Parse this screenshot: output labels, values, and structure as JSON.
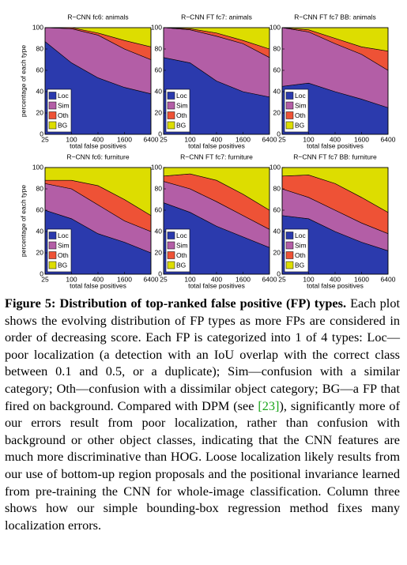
{
  "chart_data": [
    {
      "type": "area",
      "stacked": true,
      "title": "R−CNN fc6: animals",
      "xlabel": "total false positives",
      "ylabel": "percentage of each type",
      "x": [
        25,
        100,
        400,
        1600,
        6400
      ],
      "xscale": "log",
      "xlim": [
        25,
        6400
      ],
      "xticks": [
        25,
        100,
        400,
        1600,
        6400
      ],
      "ylim": [
        0,
        100
      ],
      "yticks": [
        0,
        20,
        40,
        60,
        80,
        100
      ],
      "legend": "lower left",
      "series": [
        {
          "name": "Loc",
          "color": "#2b3aad",
          "values": [
            87,
            67,
            53,
            44,
            38
          ]
        },
        {
          "name": "Sim",
          "color": "#b35ea6",
          "values": [
            13,
            32,
            40,
            36,
            32
          ]
        },
        {
          "name": "Oth",
          "color": "#ee5236",
          "values": [
            0,
            1,
            2,
            8,
            12
          ]
        },
        {
          "name": "BG",
          "color": "#dddd00",
          "values": [
            0,
            0,
            5,
            12,
            18
          ]
        }
      ]
    },
    {
      "type": "area",
      "stacked": true,
      "title": "R−CNN FT fc7: animals",
      "xlabel": "total false positives",
      "x": [
        25,
        100,
        400,
        1600,
        6400
      ],
      "xscale": "log",
      "xlim": [
        25,
        6400
      ],
      "xticks": [
        25,
        100,
        400,
        1600,
        6400
      ],
      "ylim": [
        0,
        100
      ],
      "yticks": [
        0,
        20,
        40,
        60,
        80,
        100
      ],
      "legend": "lower left",
      "series": [
        {
          "name": "Loc",
          "color": "#2b3aad",
          "values": [
            72,
            67,
            50,
            40,
            35
          ]
        },
        {
          "name": "Sim",
          "color": "#b35ea6",
          "values": [
            28,
            31,
            42,
            45,
            37
          ]
        },
        {
          "name": "Oth",
          "color": "#ee5236",
          "values": [
            0,
            1,
            3,
            3,
            8
          ]
        },
        {
          "name": "BG",
          "color": "#dddd00",
          "values": [
            0,
            1,
            5,
            12,
            20
          ]
        }
      ]
    },
    {
      "type": "area",
      "stacked": true,
      "title": "R−CNN FT fc7 BB: animals",
      "xlabel": "total false positives",
      "x": [
        25,
        100,
        400,
        1600,
        6400
      ],
      "xscale": "log",
      "xlim": [
        25,
        6400
      ],
      "xticks": [
        25,
        100,
        400,
        1600,
        6400
      ],
      "ylim": [
        0,
        100
      ],
      "yticks": [
        0,
        20,
        40,
        60,
        80,
        100
      ],
      "legend": "lower left",
      "series": [
        {
          "name": "Loc",
          "color": "#2b3aad",
          "values": [
            45,
            48,
            40,
            33,
            25
          ]
        },
        {
          "name": "Sim",
          "color": "#b35ea6",
          "values": [
            55,
            48,
            45,
            42,
            35
          ]
        },
        {
          "name": "Oth",
          "color": "#ee5236",
          "values": [
            0,
            2,
            5,
            7,
            18
          ]
        },
        {
          "name": "BG",
          "color": "#dddd00",
          "values": [
            0,
            2,
            10,
            18,
            22
          ]
        }
      ]
    },
    {
      "type": "area",
      "stacked": true,
      "title": "R−CNN fc6: furniture",
      "xlabel": "total false positives",
      "ylabel": "percentage of each type",
      "x": [
        25,
        100,
        400,
        1600,
        6400
      ],
      "xscale": "log",
      "xlim": [
        25,
        6400
      ],
      "xticks": [
        25,
        100,
        400,
        1600,
        6400
      ],
      "ylim": [
        0,
        100
      ],
      "yticks": [
        0,
        20,
        40,
        60,
        80,
        100
      ],
      "legend": "lower left",
      "series": [
        {
          "name": "Loc",
          "color": "#2b3aad",
          "values": [
            60,
            52,
            38,
            30,
            20
          ]
        },
        {
          "name": "Sim",
          "color": "#b35ea6",
          "values": [
            25,
            28,
            27,
            20,
            20
          ]
        },
        {
          "name": "Oth",
          "color": "#ee5236",
          "values": [
            3,
            8,
            18,
            20,
            15
          ]
        },
        {
          "name": "BG",
          "color": "#dddd00",
          "values": [
            12,
            12,
            17,
            30,
            45
          ]
        }
      ]
    },
    {
      "type": "area",
      "stacked": true,
      "title": "R−CNN FT fc7: furniture",
      "xlabel": "total false positives",
      "x": [
        25,
        100,
        400,
        1600,
        6400
      ],
      "xscale": "log",
      "xlim": [
        25,
        6400
      ],
      "xticks": [
        25,
        100,
        400,
        1600,
        6400
      ],
      "ylim": [
        0,
        100
      ],
      "yticks": [
        0,
        20,
        40,
        60,
        80,
        100
      ],
      "legend": "lower left",
      "series": [
        {
          "name": "Loc",
          "color": "#2b3aad",
          "values": [
            67,
            58,
            45,
            35,
            25
          ]
        },
        {
          "name": "Sim",
          "color": "#b35ea6",
          "values": [
            20,
            22,
            23,
            20,
            17
          ]
        },
        {
          "name": "Oth",
          "color": "#ee5236",
          "values": [
            5,
            14,
            20,
            20,
            18
          ]
        },
        {
          "name": "BG",
          "color": "#dddd00",
          "values": [
            8,
            6,
            12,
            25,
            40
          ]
        }
      ]
    },
    {
      "type": "area",
      "stacked": true,
      "title": "R−CNN FT fc7 BB: furniture",
      "xlabel": "total false positives",
      "x": [
        25,
        100,
        400,
        1600,
        6400
      ],
      "xscale": "log",
      "xlim": [
        25,
        6400
      ],
      "xticks": [
        25,
        100,
        400,
        1600,
        6400
      ],
      "ylim": [
        0,
        100
      ],
      "yticks": [
        0,
        20,
        40,
        60,
        80,
        100
      ],
      "legend": "lower left",
      "series": [
        {
          "name": "Loc",
          "color": "#2b3aad",
          "values": [
            55,
            52,
            40,
            30,
            22
          ]
        },
        {
          "name": "Sim",
          "color": "#b35ea6",
          "values": [
            25,
            20,
            20,
            18,
            16
          ]
        },
        {
          "name": "Oth",
          "color": "#ee5236",
          "values": [
            12,
            21,
            25,
            24,
            20
          ]
        },
        {
          "name": "BG",
          "color": "#dddd00",
          "values": [
            8,
            7,
            15,
            28,
            42
          ]
        }
      ]
    }
  ],
  "caption": {
    "label": "Figure 5: Distribution of top-ranked false positive (FP) types.",
    "text_before": "Each plot shows the evolving distribution of FP types as more FPs are considered in order of decreasing score. Each FP is categorized into 1 of 4 types: Loc—poor localization (a detection with an IoU overlap with the correct class between 0.1 and 0.5, or a duplicate); Sim—confusion with a similar category; Oth—confusion with a dissimilar object category; BG—a FP that fired on background. Compared with DPM (see",
    "citation": "[23]",
    "text_after": "), significantly more of our errors result from poor localization, rather than confusion with background or other object classes, indicating that the CNN features are much more discriminative than HOG. Loose localization likely results from our use of bottom-up region proposals and the positional invariance learned from pre-training the CNN for whole-image classification. Column three shows how our simple bounding-box regression method fixes many localization errors."
  }
}
